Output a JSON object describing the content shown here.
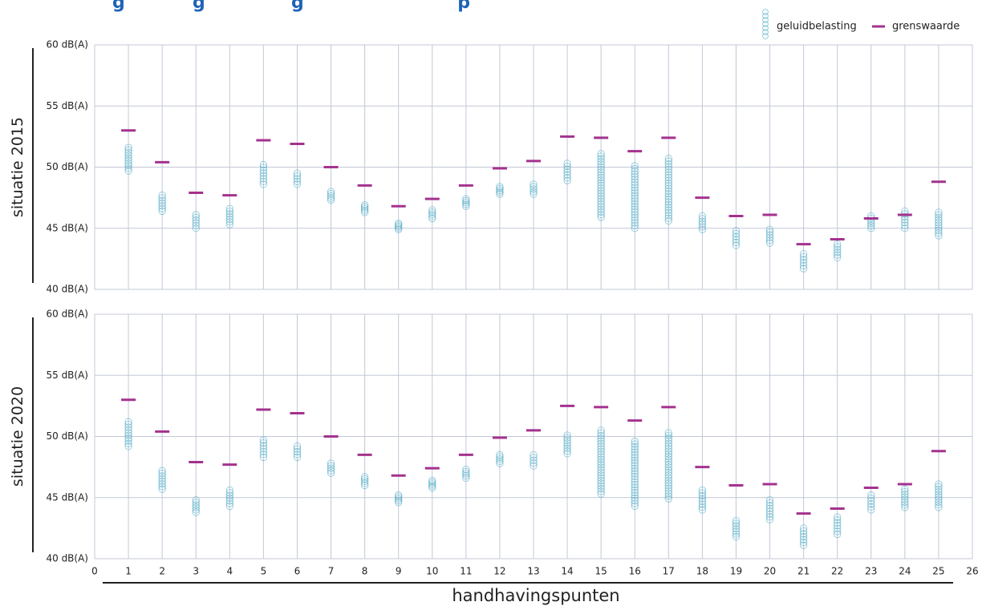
{
  "title_fragment": "g           g              g                         p",
  "chart_data": {
    "type": "scatter",
    "xlabel": "handhavingspunten",
    "xlim": [
      0,
      26
    ],
    "x_ticks": [
      "0",
      "1",
      "2",
      "3",
      "4",
      "5",
      "6",
      "7",
      "8",
      "9",
      "10",
      "11",
      "12",
      "13",
      "14",
      "15",
      "16",
      "17",
      "18",
      "19",
      "20",
      "21",
      "22",
      "23",
      "24",
      "25",
      "26"
    ],
    "y_ticks": [
      "40 dB(A)",
      "45 dB(A)",
      "50 dB(A)",
      "55 dB(A)",
      "60 dB(A)"
    ],
    "ylim": [
      40,
      60
    ],
    "grid": true,
    "legend": {
      "position": "top-right",
      "entries": [
        {
          "label": "geluidbelasting",
          "kind": "circles"
        },
        {
          "label": "grenswaarde",
          "kind": "dash"
        }
      ]
    },
    "colors": {
      "geluidbelasting": "#3aa3c0",
      "grenswaarde": "#a4328e",
      "grid": "#c4c8d8",
      "title": "#1f63b5"
    },
    "panels": [
      {
        "label": "situatie 2015",
        "grenswaarde": [
          53.0,
          50.4,
          47.9,
          47.7,
          52.2,
          51.9,
          50.0,
          48.5,
          46.8,
          47.4,
          48.5,
          49.9,
          50.5,
          52.5,
          52.4,
          51.3,
          52.4,
          47.5,
          46.0,
          46.1,
          43.7,
          44.1,
          45.8,
          46.1,
          48.8
        ],
        "geluidbelasting_range": [
          [
            49.7,
            51.6
          ],
          [
            46.4,
            47.7
          ],
          [
            45.0,
            46.1
          ],
          [
            45.3,
            46.6
          ],
          [
            48.6,
            50.2
          ],
          [
            48.6,
            49.5
          ],
          [
            47.3,
            48.0
          ],
          [
            46.3,
            46.9
          ],
          [
            44.9,
            45.4
          ],
          [
            45.8,
            46.5
          ],
          [
            46.8,
            47.4
          ],
          [
            47.8,
            48.4
          ],
          [
            47.8,
            48.6
          ],
          [
            48.9,
            50.3
          ],
          [
            45.9,
            51.1
          ],
          [
            45.0,
            50.1
          ],
          [
            45.6,
            50.7
          ],
          [
            44.9,
            46.0
          ],
          [
            43.6,
            44.8
          ],
          [
            43.8,
            44.9
          ],
          [
            41.7,
            42.9
          ],
          [
            42.6,
            43.7
          ],
          [
            45.0,
            46.0
          ],
          [
            45.0,
            46.4
          ],
          [
            44.4,
            46.3
          ]
        ]
      },
      {
        "label": "situatie 2020",
        "grenswaarde": [
          53.0,
          50.4,
          47.9,
          47.7,
          52.2,
          51.9,
          50.0,
          48.5,
          46.8,
          47.4,
          48.5,
          49.9,
          50.5,
          52.5,
          52.4,
          51.3,
          52.4,
          47.5,
          46.0,
          46.1,
          43.7,
          44.1,
          45.8,
          46.1,
          48.8
        ],
        "geluidbelasting_range": [
          [
            49.2,
            51.2
          ],
          [
            45.7,
            47.2
          ],
          [
            43.8,
            44.8
          ],
          [
            44.3,
            45.6
          ],
          [
            48.3,
            49.7
          ],
          [
            48.3,
            49.2
          ],
          [
            47.0,
            47.8
          ],
          [
            46.0,
            46.7
          ],
          [
            44.6,
            45.2
          ],
          [
            45.8,
            46.4
          ],
          [
            46.6,
            47.3
          ],
          [
            47.8,
            48.5
          ],
          [
            47.6,
            48.5
          ],
          [
            48.6,
            50.1
          ],
          [
            45.3,
            50.5
          ],
          [
            44.3,
            49.6
          ],
          [
            44.9,
            50.3
          ],
          [
            44.0,
            45.6
          ],
          [
            41.8,
            43.1
          ],
          [
            43.2,
            44.8
          ],
          [
            41.1,
            42.5
          ],
          [
            42.0,
            43.4
          ],
          [
            44.0,
            45.2
          ],
          [
            44.2,
            45.7
          ],
          [
            44.2,
            46.1
          ]
        ]
      }
    ]
  }
}
